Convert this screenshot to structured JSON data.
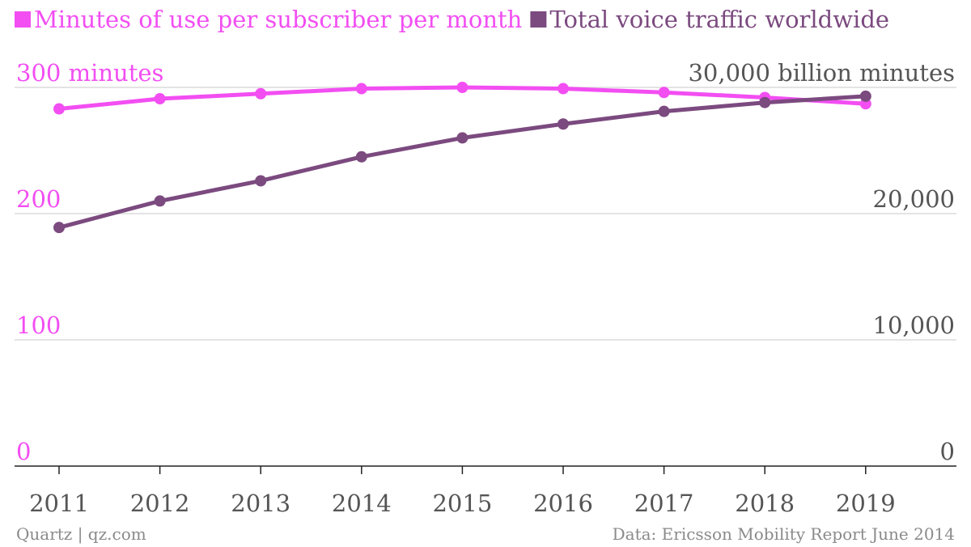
{
  "legend": [
    {
      "name": "Minutes of use per subscriber per month",
      "color": "#f24ef2"
    },
    {
      "name": "Total voice traffic worldwide",
      "color": "#7b4a7f"
    }
  ],
  "footer": {
    "source_left": "Quartz | qz.com",
    "source_right": "Data: Ericsson Mobility Report June 2014"
  },
  "chart_data": {
    "type": "line",
    "x": [
      "2011",
      "2012",
      "2013",
      "2014",
      "2015",
      "2016",
      "2017",
      "2018",
      "2019"
    ],
    "series": [
      {
        "name": "Minutes of use per subscriber per month",
        "axis": "left",
        "color": "#f24ef2",
        "values": [
          283,
          291,
          295,
          299,
          300,
          299,
          296,
          292,
          287
        ]
      },
      {
        "name": "Total voice traffic worldwide",
        "axis": "right",
        "color": "#7b4a7f",
        "values": [
          18900,
          21000,
          22600,
          24500,
          26000,
          27100,
          28100,
          28800,
          29300
        ]
      }
    ],
    "y_left": {
      "range": [
        0,
        300
      ],
      "ticks": [
        0,
        100,
        200,
        300
      ],
      "tick_labels": [
        "0",
        "100",
        "200",
        "300 minutes"
      ],
      "color": "#f24ef2"
    },
    "y_right": {
      "range": [
        0,
        30000
      ],
      "ticks": [
        0,
        10000,
        20000,
        30000
      ],
      "tick_labels": [
        "0",
        "10,000",
        "20,000",
        "30,000 billion minutes"
      ],
      "color": "#555555"
    },
    "grid": true,
    "legend_position": "top-left"
  }
}
